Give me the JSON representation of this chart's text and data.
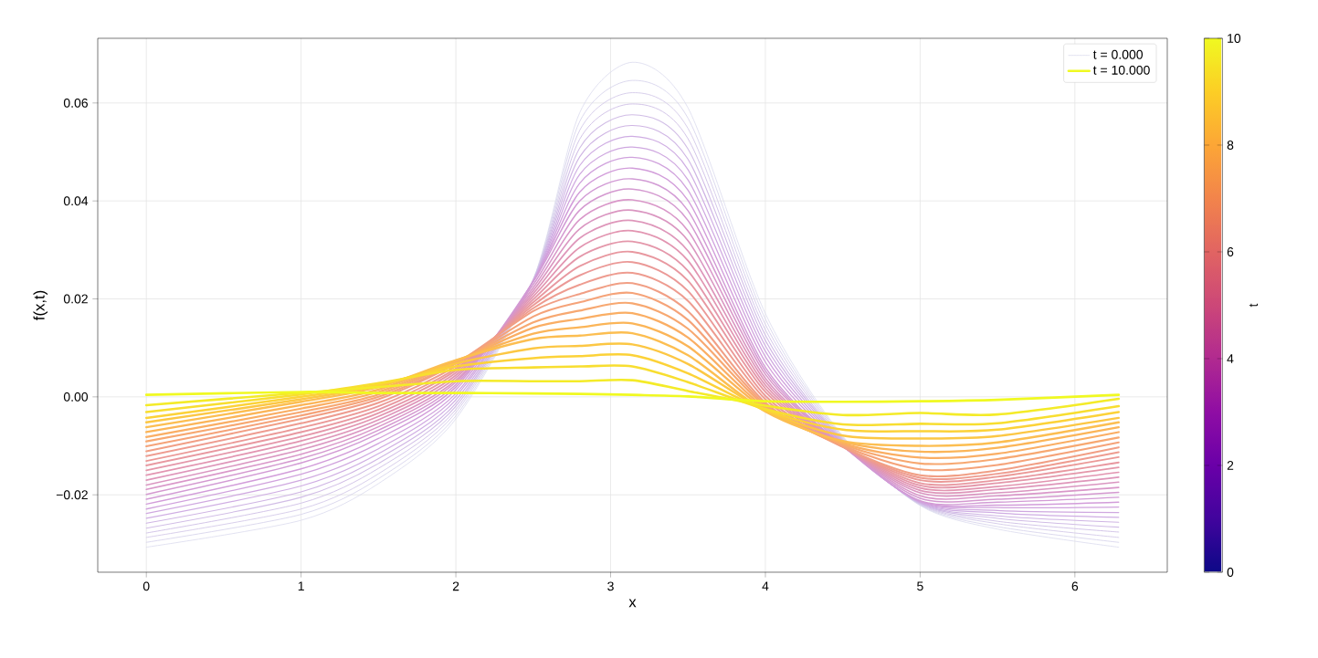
{
  "chart_data": {
    "type": "line",
    "xlabel": "x",
    "ylabel": "f(x,t)",
    "clabel": "t",
    "clim": [
      0,
      10
    ],
    "cticks": [
      0,
      2,
      4,
      6,
      8,
      10
    ],
    "xlim": [
      -0.314,
      6.597
    ],
    "ylim": [
      -0.0358,
      0.0732
    ],
    "xticks": [
      0,
      1,
      2,
      3,
      4,
      5,
      6
    ],
    "yticks": [
      {
        "value": -0.02,
        "label": "−0.02"
      },
      {
        "value": 0,
        "label": "0.00"
      },
      0.02,
      0.04,
      0.06
    ],
    "grid": true,
    "legend": "top right",
    "x": [
      0,
      1,
      1.5,
      2,
      2.5,
      2.8,
      3.14,
      3.5,
      4,
      4.5,
      5,
      5.5,
      6.283
    ],
    "series": [
      {
        "name": "t = 0.000",
        "color": "#dbdaed",
        "values": [
          -0.0307,
          -0.0252,
          -0.0177,
          -0.0045,
          0.024,
          0.058,
          0.0683,
          0.059,
          0.017,
          -0.008,
          -0.0222,
          -0.027,
          -0.0307
        ]
      },
      {
        "color": "#d7d3eb",
        "values": [
          -0.0297,
          -0.024,
          -0.0167,
          -0.0039,
          0.024,
          0.0562,
          0.0646,
          0.0569,
          0.0159,
          -0.0082,
          -0.0221,
          -0.0265,
          -0.0297
        ]
      },
      {
        "color": "#d4cbe9",
        "values": [
          -0.0287,
          -0.0229,
          -0.0157,
          -0.0032,
          0.0239,
          0.0544,
          0.0621,
          0.0548,
          0.0148,
          -0.0084,
          -0.022,
          -0.0259,
          -0.0287
        ]
      },
      {
        "color": "#d2c4e8",
        "values": [
          -0.0278,
          -0.0217,
          -0.0146,
          -0.0026,
          0.0239,
          0.0526,
          0.0598,
          0.0527,
          0.0137,
          -0.0086,
          -0.0219,
          -0.0254,
          -0.0276
        ]
      },
      {
        "color": "#d1bde6",
        "values": [
          -0.0268,
          -0.0205,
          -0.0136,
          -0.0019,
          0.0238,
          0.0508,
          0.0576,
          0.0506,
          0.0126,
          -0.0088,
          -0.0218,
          -0.0248,
          -0.0266
        ]
      },
      {
        "color": "#cfb5e4",
        "values": [
          -0.0258,
          -0.0194,
          -0.0126,
          -0.0013,
          0.0238,
          0.049,
          0.0554,
          0.0485,
          0.0115,
          -0.009,
          -0.0217,
          -0.0243,
          -0.0256
        ]
      },
      {
        "color": "#cfade3",
        "values": [
          -0.0248,
          -0.0182,
          -0.0116,
          -0.0006,
          0.0237,
          0.0472,
          0.0532,
          0.0464,
          0.0104,
          -0.0092,
          -0.0216,
          -0.0237,
          -0.0246
        ]
      },
      {
        "color": "#cfa8e0",
        "values": [
          -0.0238,
          -0.017,
          -0.0106,
          0.0001,
          0.0237,
          0.0454,
          0.051,
          0.0443,
          0.0093,
          -0.0094,
          -0.0215,
          -0.0232,
          -0.0236
        ]
      },
      {
        "color": "#d0a2dd",
        "values": [
          -0.0229,
          -0.0158,
          -0.0095,
          0.0007,
          0.0236,
          0.0436,
          0.0489,
          0.0422,
          0.0082,
          -0.0096,
          -0.0214,
          -0.0226,
          -0.0225
        ]
      },
      {
        "color": "#d29dda",
        "values": [
          -0.0219,
          -0.0147,
          -0.0085,
          0.0014,
          0.0236,
          0.0418,
          0.0467,
          0.0401,
          0.0071,
          -0.0098,
          -0.0213,
          -0.0221,
          -0.0215
        ]
      },
      {
        "color": "#d29bd5",
        "values": [
          -0.0209,
          -0.0135,
          -0.0075,
          0.002,
          0.0235,
          0.04,
          0.0445,
          0.038,
          0.006,
          -0.01,
          -0.0212,
          -0.0215,
          -0.0205
        ]
      },
      {
        "color": "#d499d0",
        "values": [
          -0.0199,
          -0.0126,
          -0.0068,
          0.0025,
          0.0229,
          0.0381,
          0.0424,
          0.036,
          0.0053,
          -0.01,
          -0.0207,
          -0.0209,
          -0.0195
        ]
      },
      {
        "color": "#d997c9",
        "values": [
          -0.0189,
          -0.0117,
          -0.0061,
          0.003,
          0.0223,
          0.0362,
          0.0402,
          0.0339,
          0.0046,
          -0.01,
          -0.0202,
          -0.0202,
          -0.0185
        ]
      },
      {
        "color": "#da96c1",
        "values": [
          -0.018,
          -0.0108,
          -0.0054,
          0.0034,
          0.0217,
          0.0343,
          0.0381,
          0.0319,
          0.0038,
          -0.0101,
          -0.0196,
          -0.0196,
          -0.0174
        ]
      },
      {
        "color": "#de96ba",
        "values": [
          -0.017,
          -0.0099,
          -0.0047,
          0.0039,
          0.0211,
          0.0324,
          0.036,
          0.0298,
          0.0031,
          -0.0101,
          -0.0191,
          -0.0189,
          -0.0164
        ]
      },
      {
        "color": "#e295b1",
        "values": [
          -0.016,
          -0.009,
          -0.004,
          0.0044,
          0.0205,
          0.0305,
          0.0339,
          0.0278,
          0.0024,
          -0.0101,
          -0.0186,
          -0.0183,
          -0.0154
        ]
      },
      {
        "color": "#e497aa",
        "values": [
          -0.015,
          -0.0081,
          -0.0033,
          0.0049,
          0.0199,
          0.0286,
          0.0317,
          0.0257,
          0.0017,
          -0.0101,
          -0.0181,
          -0.0176,
          -0.0144
        ]
      },
      {
        "color": "#e898a0",
        "values": [
          -0.014,
          -0.0072,
          -0.0026,
          0.0054,
          0.0193,
          0.0267,
          0.0296,
          0.0237,
          0.001,
          -0.0101,
          -0.0176,
          -0.017,
          -0.0134
        ]
      },
      {
        "color": "#eb9997",
        "values": [
          -0.0131,
          -0.0063,
          -0.0019,
          0.0058,
          0.0187,
          0.0248,
          0.0275,
          0.0216,
          0.0002,
          -0.0102,
          -0.017,
          -0.0163,
          -0.0123
        ]
      },
      {
        "color": "#ee9c90",
        "values": [
          -0.0121,
          -0.0054,
          -0.0012,
          0.0063,
          0.0181,
          0.0229,
          0.0253,
          0.0196,
          -0.0005,
          -0.0102,
          -0.0165,
          -0.0157,
          -0.0113
        ]
      },
      {
        "color": "#f19f85",
        "values": [
          -0.0111,
          -0.0045,
          -0.0005,
          0.0068,
          0.0175,
          0.021,
          0.0232,
          0.0175,
          -0.0012,
          -0.0102,
          -0.016,
          -0.015,
          -0.0103
        ]
      },
      {
        "color": "#f5a379",
        "values": [
          -0.0101,
          -0.0038,
          0.0,
          0.0069,
          0.0164,
          0.0193,
          0.0212,
          0.0157,
          -0.0016,
          -0.01,
          -0.0148,
          -0.0139,
          -0.0093
        ]
      },
      {
        "color": "#f7a871",
        "values": [
          -0.0091,
          -0.0031,
          0.0005,
          0.0071,
          0.0152,
          0.0176,
          0.0191,
          0.0139,
          -0.0019,
          -0.0097,
          -0.0136,
          -0.0127,
          -0.0083
        ]
      },
      {
        "color": "#faae64",
        "values": [
          -0.0082,
          -0.0024,
          0.001,
          0.0072,
          0.0141,
          0.0159,
          0.0171,
          0.0121,
          -0.0023,
          -0.0095,
          -0.0124,
          -0.0116,
          -0.0072
        ]
      },
      {
        "color": "#fbb558",
        "values": [
          -0.0072,
          -0.0017,
          0.0015,
          0.0074,
          0.0129,
          0.0142,
          0.015,
          0.0103,
          -0.0026,
          -0.0092,
          -0.0112,
          -0.0104,
          -0.0062
        ]
      },
      {
        "color": "#fcbe51",
        "values": [
          -0.0062,
          -0.001,
          0.002,
          0.0075,
          0.0118,
          0.0125,
          0.013,
          0.0085,
          -0.003,
          -0.009,
          -0.01,
          -0.0093,
          -0.0052
        ]
      },
      {
        "color": "#fcc744",
        "values": [
          -0.0052,
          -0.0005,
          0.0023,
          0.0068,
          0.0099,
          0.0104,
          0.0107,
          0.0067,
          -0.0028,
          -0.0079,
          -0.0085,
          -0.008,
          -0.0043
        ]
      },
      {
        "color": "#fcd238",
        "values": [
          -0.0043,
          0.0,
          0.0025,
          0.0062,
          0.0079,
          0.0083,
          0.0085,
          0.0048,
          -0.0027,
          -0.0067,
          -0.007,
          -0.0067,
          -0.0031
        ]
      },
      {
        "color": "#f8de30",
        "values": [
          -0.0031,
          0.0005,
          0.0028,
          0.0055,
          0.006,
          0.0062,
          0.0062,
          0.003,
          -0.0025,
          -0.0056,
          -0.0055,
          -0.0054,
          -0.0019
        ]
      },
      {
        "color": "#f4eb28",
        "values": [
          -0.0017,
          0.0008,
          0.002,
          0.0032,
          0.0032,
          0.0032,
          0.0034,
          0.0012,
          -0.0018,
          -0.0037,
          -0.0033,
          -0.0036,
          -0.0004
        ]
      },
      {
        "name": "t = 10.000",
        "color": "#f0f921",
        "values": [
          0.0004,
          0.001,
          0.0008,
          0.0008,
          0.0007,
          0.0006,
          0.0004,
          0.0001,
          -0.0009,
          -0.001,
          -0.0009,
          -0.0006,
          0.0004
        ]
      }
    ]
  }
}
